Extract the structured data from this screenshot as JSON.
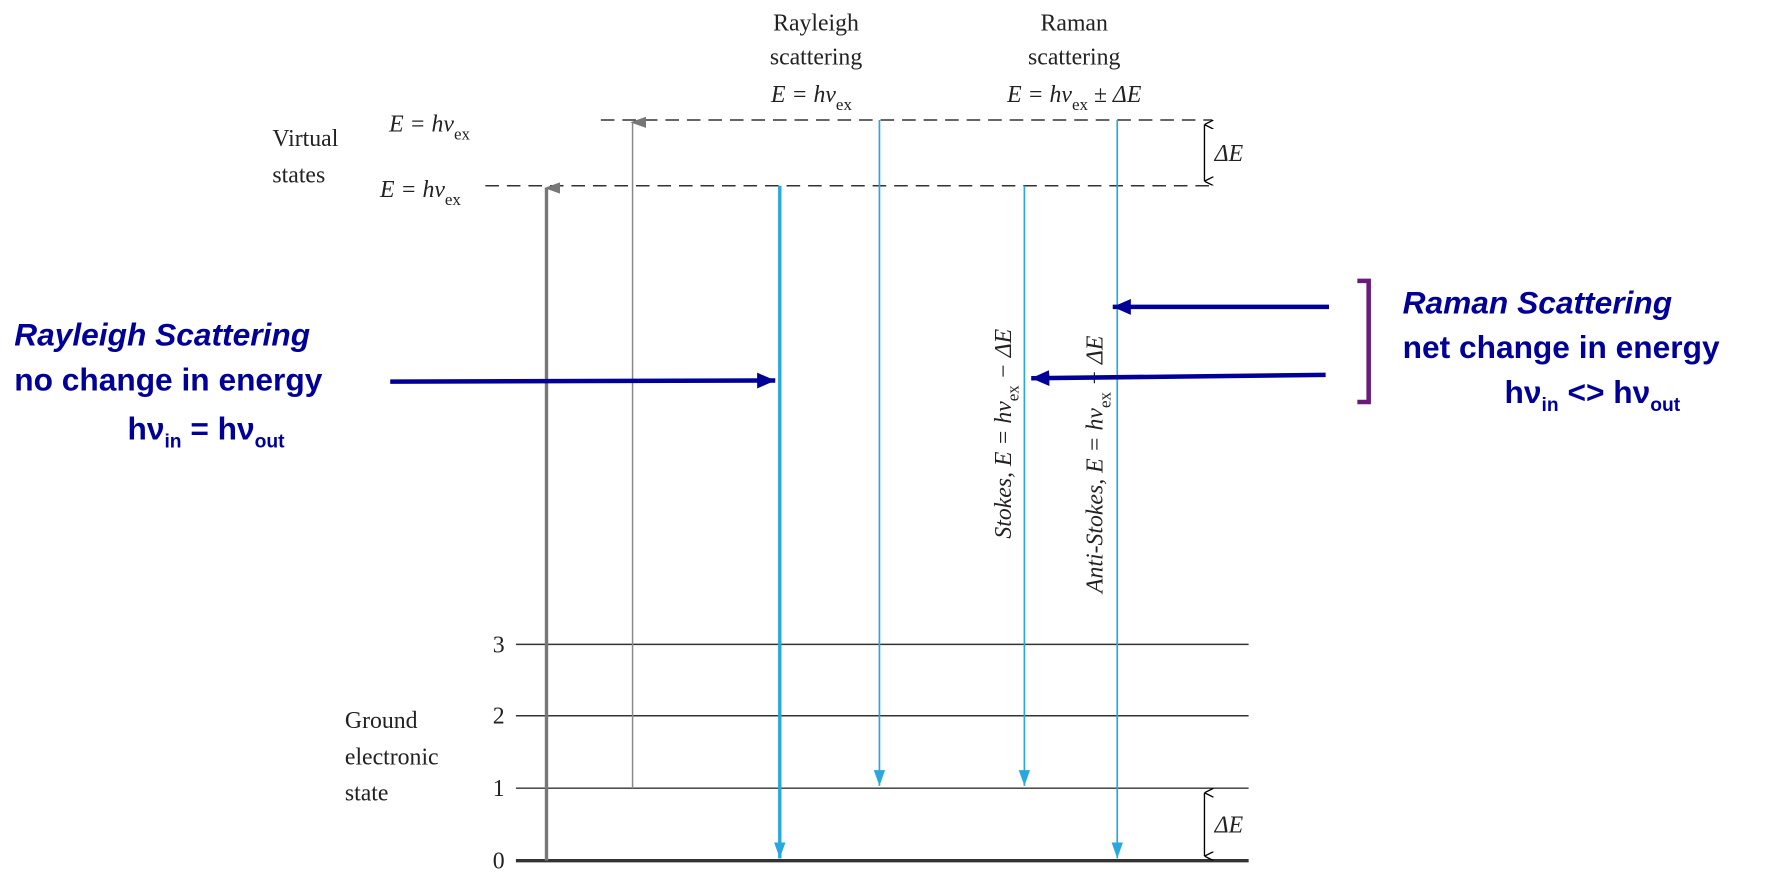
{
  "headers": {
    "rayleigh": {
      "line1": "Rayleigh",
      "line2": "scattering",
      "formula": "E = hν",
      "formula_sub": "ex"
    },
    "raman": {
      "line1": "Raman",
      "line2": "scattering",
      "formula": "E = hν",
      "formula_sub": "ex",
      "formula_tail": " ± ΔE"
    }
  },
  "virtual_states": {
    "label_line1": "Virtual",
    "label_line2": "states",
    "upper": {
      "text": "E = hν",
      "sub": "ex"
    },
    "lower": {
      "text": "E = hν",
      "sub": "ex"
    }
  },
  "delta_top": "ΔE",
  "delta_bottom": "ΔE",
  "levels": [
    "0",
    "1",
    "2",
    "3"
  ],
  "ground_label": [
    "Ground",
    "electronic",
    "state"
  ],
  "stokes": {
    "text": "Stokes, E = hν",
    "sub": "ex",
    "tail": " − ΔE"
  },
  "anti_stokes": {
    "text": "Anti-Stokes, E = hν",
    "sub": "ex",
    "tail": " + ΔE"
  },
  "annotations": {
    "rayleigh": {
      "title": "Rayleigh Scattering",
      "line2": "no change in energy",
      "eq": [
        "hν",
        "in",
        " = hν",
        "out"
      ]
    },
    "raman": {
      "title": "Raman Scattering",
      "line2": "net change in energy",
      "eq": [
        "hν",
        "in",
        " <> hν",
        "out"
      ]
    }
  }
}
